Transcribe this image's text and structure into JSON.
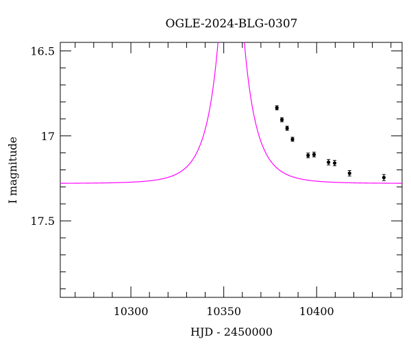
{
  "chart_data": {
    "type": "scatter",
    "title": "OGLE-2024-BLG-0307",
    "xlabel": "HJD - 2450000",
    "ylabel": "I magnitude",
    "xlim": [
      10262,
      10446
    ],
    "ylim": [
      17.95,
      16.45
    ],
    "y_inverted": true,
    "grid": false,
    "xticks": [
      10300,
      10350,
      10400
    ],
    "xtick_labels": [
      "10300",
      "10350",
      "10400"
    ],
    "yticks": [
      16.5,
      17,
      17.5
    ],
    "ytick_labels": [
      "16.5",
      "17",
      "17.5"
    ],
    "colors": {
      "model": "#ff00ff",
      "points": "#000000"
    },
    "model": {
      "name": "",
      "description": "point-lens microlensing fit",
      "t0": 10354.0,
      "u0": 0.05,
      "tE": 14.0,
      "baseline_mag": 17.28
    },
    "series": [
      {
        "x": [
          10378.6,
          10381.3,
          10384.1,
          10387.0,
          10395.4,
          10398.6,
          10406.4,
          10409.7,
          10417.7,
          10436.2
        ],
        "y": [
          16.835,
          16.905,
          16.955,
          17.02,
          17.115,
          17.11,
          17.155,
          17.16,
          17.22,
          17.245
        ],
        "yerr": [
          0.012,
          0.012,
          0.012,
          0.012,
          0.014,
          0.014,
          0.016,
          0.016,
          0.016,
          0.018
        ]
      }
    ]
  }
}
